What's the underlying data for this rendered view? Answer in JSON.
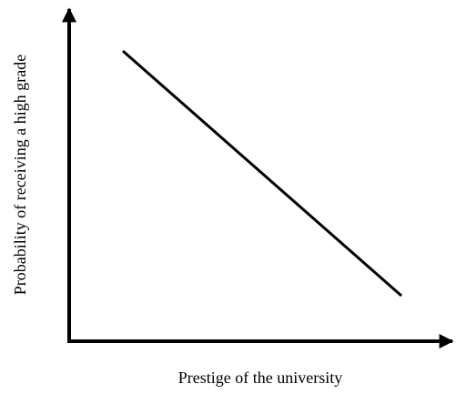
{
  "x_axis_label": "Prestige of the university",
  "y_axis_label": "Probability of receiving a high grade"
}
